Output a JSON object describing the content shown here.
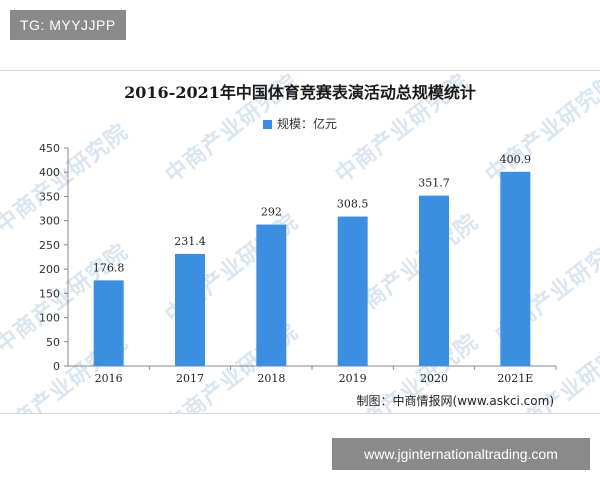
{
  "tag": "TG: MYYJJPP",
  "watermark_text": "中商产业研究院",
  "source": "制图：中商情报网(www.askci.com)",
  "site": "www.jginternationaltrading.com",
  "colors": {
    "bar": "#3c8fe0",
    "axis": "#888888"
  },
  "chart_data": {
    "type": "bar",
    "title": "2016-2021年中国体育竞赛表演活动总规模统计",
    "categories": [
      "2016",
      "2017",
      "2018",
      "2019",
      "2020",
      "2021E"
    ],
    "series": [
      {
        "name": "规模：亿元",
        "values": [
          176.8,
          231.4,
          292,
          308.5,
          351.7,
          400.9
        ]
      }
    ],
    "data_labels": [
      "176.8",
      "231.4",
      "292",
      "308.5",
      "351.7",
      "400.9"
    ],
    "yticks": [
      0,
      50,
      100,
      150,
      200,
      250,
      300,
      350,
      400,
      450
    ],
    "ylim": [
      0,
      450
    ],
    "xlabel": "",
    "ylabel": "",
    "legend_position": "top-center",
    "grid": false
  }
}
